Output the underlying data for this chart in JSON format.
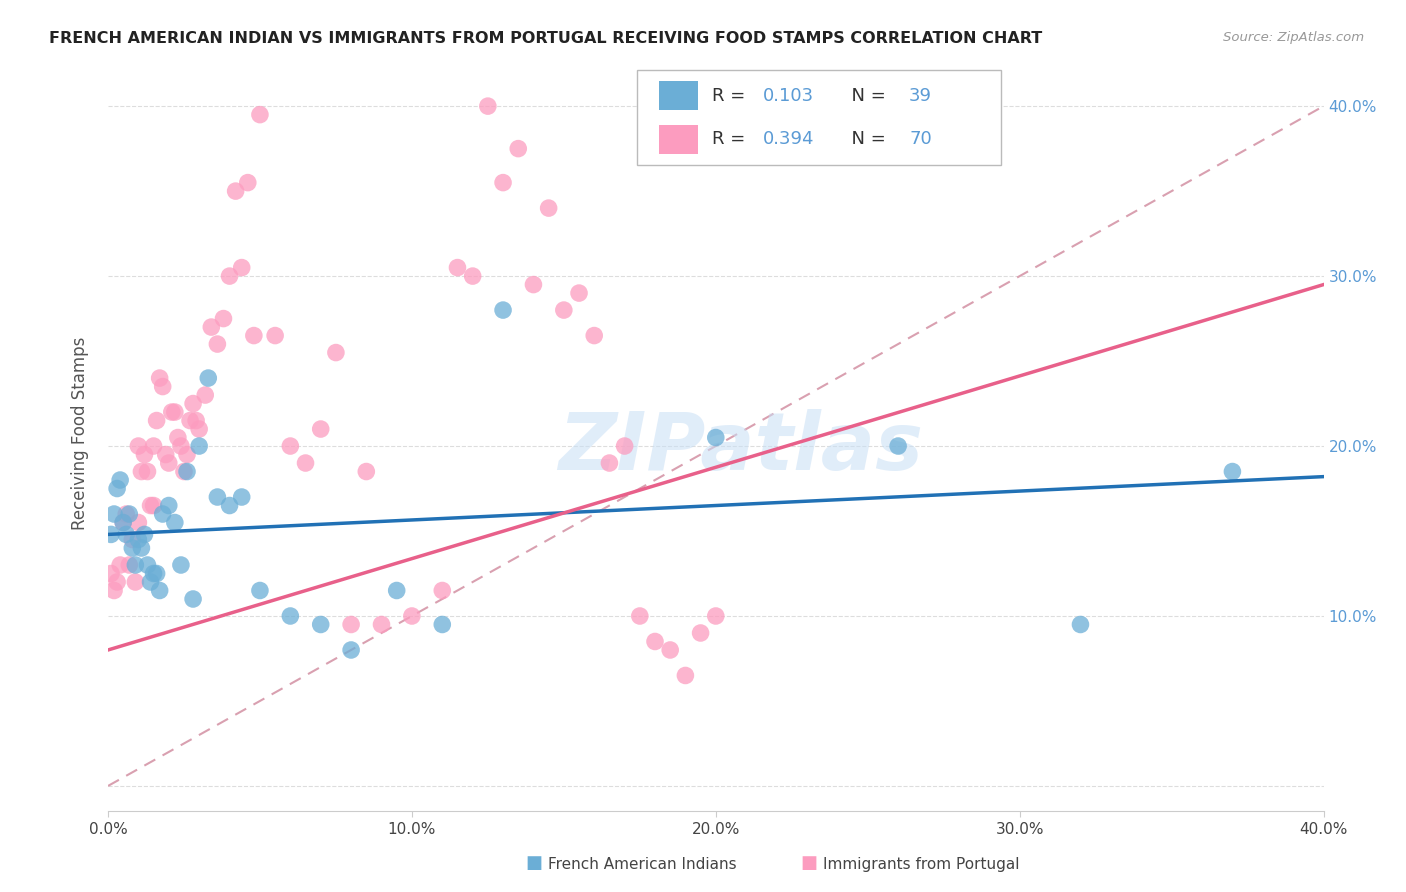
{
  "title": "FRENCH AMERICAN INDIAN VS IMMIGRANTS FROM PORTUGAL RECEIVING FOOD STAMPS CORRELATION CHART",
  "source": "Source: ZipAtlas.com",
  "ylabel": "Receiving Food Stamps",
  "xlim": [
    0.0,
    0.4
  ],
  "ylim": [
    -0.015,
    0.43
  ],
  "xticks": [
    0.0,
    0.1,
    0.2,
    0.3,
    0.4
  ],
  "xtick_labels": [
    "0.0%",
    "10.0%",
    "20.0%",
    "30.0%",
    "40.0%"
  ],
  "yticks": [
    0.0,
    0.1,
    0.2,
    0.3,
    0.4
  ],
  "ytick_labels": [
    "",
    "10.0%",
    "20.0%",
    "30.0%",
    "40.0%"
  ],
  "watermark": "ZIPatlas",
  "legend_label_blue": "French American Indians",
  "legend_label_pink": "Immigrants from Portugal",
  "blue_color": "#6baed6",
  "pink_color": "#fc9cbf",
  "blue_line_color": "#2171b5",
  "pink_line_color": "#e8608a",
  "diagonal_color": "#d9a0b0",
  "tick_color": "#5b9bd5",
  "blue_points_x": [
    0.001,
    0.002,
    0.003,
    0.004,
    0.005,
    0.006,
    0.007,
    0.008,
    0.009,
    0.01,
    0.011,
    0.012,
    0.013,
    0.014,
    0.015,
    0.016,
    0.017,
    0.018,
    0.02,
    0.022,
    0.024,
    0.026,
    0.028,
    0.03,
    0.033,
    0.036,
    0.04,
    0.044,
    0.05,
    0.06,
    0.07,
    0.08,
    0.095,
    0.11,
    0.13,
    0.2,
    0.26,
    0.32,
    0.37
  ],
  "blue_points_y": [
    0.148,
    0.16,
    0.175,
    0.18,
    0.155,
    0.148,
    0.16,
    0.14,
    0.13,
    0.145,
    0.14,
    0.148,
    0.13,
    0.12,
    0.125,
    0.125,
    0.115,
    0.16,
    0.165,
    0.155,
    0.13,
    0.185,
    0.11,
    0.2,
    0.24,
    0.17,
    0.165,
    0.17,
    0.115,
    0.1,
    0.095,
    0.08,
    0.115,
    0.095,
    0.28,
    0.205,
    0.2,
    0.095,
    0.185
  ],
  "pink_points_x": [
    0.001,
    0.002,
    0.003,
    0.004,
    0.005,
    0.006,
    0.007,
    0.008,
    0.009,
    0.01,
    0.011,
    0.012,
    0.013,
    0.014,
    0.015,
    0.016,
    0.017,
    0.018,
    0.019,
    0.02,
    0.021,
    0.022,
    0.023,
    0.024,
    0.025,
    0.026,
    0.027,
    0.028,
    0.029,
    0.03,
    0.032,
    0.034,
    0.036,
    0.038,
    0.04,
    0.042,
    0.044,
    0.046,
    0.048,
    0.05,
    0.055,
    0.06,
    0.065,
    0.07,
    0.075,
    0.08,
    0.085,
    0.09,
    0.1,
    0.11,
    0.115,
    0.12,
    0.125,
    0.13,
    0.135,
    0.14,
    0.145,
    0.15,
    0.155,
    0.16,
    0.165,
    0.17,
    0.175,
    0.18,
    0.185,
    0.19,
    0.195,
    0.2,
    0.01,
    0.015
  ],
  "pink_points_y": [
    0.125,
    0.115,
    0.12,
    0.13,
    0.155,
    0.16,
    0.13,
    0.145,
    0.12,
    0.2,
    0.185,
    0.195,
    0.185,
    0.165,
    0.2,
    0.215,
    0.24,
    0.235,
    0.195,
    0.19,
    0.22,
    0.22,
    0.205,
    0.2,
    0.185,
    0.195,
    0.215,
    0.225,
    0.215,
    0.21,
    0.23,
    0.27,
    0.26,
    0.275,
    0.3,
    0.35,
    0.305,
    0.355,
    0.265,
    0.395,
    0.265,
    0.2,
    0.19,
    0.21,
    0.255,
    0.095,
    0.185,
    0.095,
    0.1,
    0.115,
    0.305,
    0.3,
    0.4,
    0.355,
    0.375,
    0.295,
    0.34,
    0.28,
    0.29,
    0.265,
    0.19,
    0.2,
    0.1,
    0.085,
    0.08,
    0.065,
    0.09,
    0.1,
    0.155,
    0.165
  ]
}
